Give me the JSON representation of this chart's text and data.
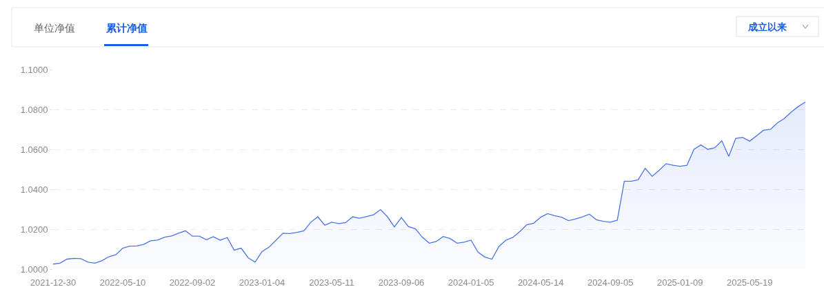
{
  "chart_data": {
    "type": "area",
    "annotations": [
      "单位净值",
      "累计净值",
      "成立以来"
    ],
    "categories": [
      "2021-12-30",
      null,
      null,
      null,
      null,
      null,
      null,
      null,
      null,
      null,
      "2022-05-10",
      null,
      null,
      null,
      null,
      null,
      null,
      null,
      null,
      null,
      "2022-09-02",
      null,
      null,
      null,
      null,
      null,
      null,
      null,
      null,
      null,
      "2023-01-04",
      null,
      null,
      null,
      null,
      null,
      null,
      null,
      null,
      null,
      "2023-05-11",
      null,
      null,
      null,
      null,
      null,
      null,
      null,
      null,
      null,
      "2023-09-06",
      null,
      null,
      null,
      null,
      null,
      null,
      null,
      null,
      null,
      "2024-01-05",
      null,
      null,
      null,
      null,
      null,
      null,
      null,
      null,
      null,
      "2024-05-14",
      null,
      null,
      null,
      null,
      null,
      null,
      null,
      null,
      null,
      "2024-09-05",
      null,
      null,
      null,
      null,
      null,
      null,
      null,
      null,
      null,
      "2025-01-09",
      null,
      null,
      null,
      null,
      null,
      null,
      null,
      null,
      null,
      "2025-05-19",
      null,
      null,
      null,
      null,
      null,
      null,
      null,
      null
    ],
    "series": [
      {
        "color": "#4b73e3",
        "values": [
          1.0025,
          1.003,
          1.005,
          1.0054,
          1.0052,
          1.0035,
          1.003,
          1.0042,
          1.0062,
          1.0072,
          1.0105,
          1.0115,
          1.0116,
          1.0124,
          1.0142,
          1.0145,
          1.016,
          1.0166,
          1.018,
          1.0192,
          1.0165,
          1.0165,
          1.0147,
          1.0162,
          1.0145,
          1.0158,
          1.0095,
          1.0105,
          1.0057,
          1.0035,
          1.0088,
          1.011,
          1.0145,
          1.018,
          1.0178,
          1.0184,
          1.0192,
          1.0235,
          1.0262,
          1.022,
          1.0235,
          1.0228,
          1.0233,
          1.0262,
          1.0255,
          1.0263,
          1.0272,
          1.0298,
          1.0262,
          1.0212,
          1.0258,
          1.0213,
          1.0202,
          1.016,
          1.013,
          1.0138,
          1.0163,
          1.0153,
          1.013,
          1.0135,
          1.0145,
          1.0085,
          1.006,
          1.005,
          1.0113,
          1.0145,
          1.0159,
          1.0188,
          1.0222,
          1.023,
          1.026,
          1.0278,
          1.0268,
          1.026,
          1.0243,
          1.0251,
          1.0262,
          1.0275,
          1.0247,
          1.0239,
          1.0235,
          1.0245,
          1.044,
          1.044,
          1.0448,
          1.0505,
          1.0465,
          1.0495,
          1.0528,
          1.052,
          1.0515,
          1.052,
          1.06,
          1.0622,
          1.06,
          1.0608,
          1.0643,
          1.0565,
          1.0655,
          1.066,
          1.0641,
          1.0668,
          1.0696,
          1.07,
          1.0733,
          1.0755,
          1.0788,
          1.0815,
          1.0837
        ]
      }
    ],
    "ylim": [
      1.0,
      1.1
    ],
    "yticks": [
      {
        "value": 1.0,
        "label": "1.0000"
      },
      {
        "value": 1.02,
        "label": "1.0200"
      },
      {
        "value": 1.04,
        "label": "1.0400"
      },
      {
        "value": 1.06,
        "label": "1.0600"
      },
      {
        "value": 1.08,
        "label": "1.0800"
      },
      {
        "value": 1.1,
        "label": "1.1000"
      }
    ],
    "grid": "y"
  }
}
